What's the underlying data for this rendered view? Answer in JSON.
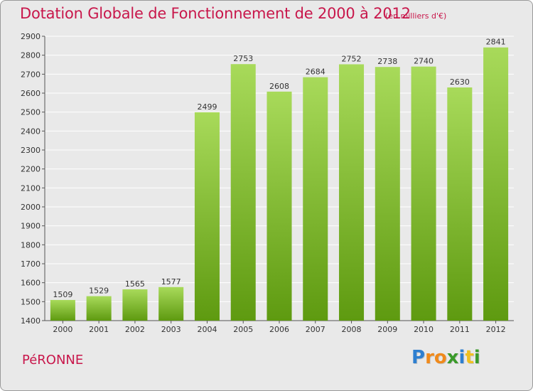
{
  "title": "Dotation Globale de Fonctionnement de 2000 à 2012",
  "subtitle": "(en milliers d'€)",
  "city": "PéRONNE",
  "logo": {
    "letters": [
      "P",
      "r",
      "o",
      "x",
      "i",
      "t",
      "i"
    ],
    "colors": [
      "#2e7fd0",
      "#f08a1c",
      "#f08a1c",
      "#3a9a2a",
      "#2e7fd0",
      "#f0c020",
      "#3a9a2a"
    ]
  },
  "colors": {
    "title": "#c8174b",
    "bar_top": "#a8da5a",
    "bar_bottom": "#5e9a10",
    "background": "#e9e9e9",
    "gridline": "#ffffff"
  },
  "chart_data": {
    "type": "bar",
    "categories": [
      "2000",
      "2001",
      "2002",
      "2003",
      "2004",
      "2005",
      "2006",
      "2007",
      "2008",
      "2009",
      "2010",
      "2011",
      "2012"
    ],
    "values": [
      1509,
      1529,
      1565,
      1577,
      2499,
      2753,
      2608,
      2684,
      2752,
      2738,
      2740,
      2630,
      2841
    ],
    "title": "Dotation Globale de Fonctionnement de 2000 à 2012",
    "ylim": [
      1400,
      2900
    ],
    "yticks": [
      1400,
      1500,
      1600,
      1700,
      1800,
      1900,
      2000,
      2100,
      2200,
      2300,
      2400,
      2500,
      2600,
      2700,
      2800,
      2900
    ],
    "grid": true,
    "data_labels": true
  }
}
